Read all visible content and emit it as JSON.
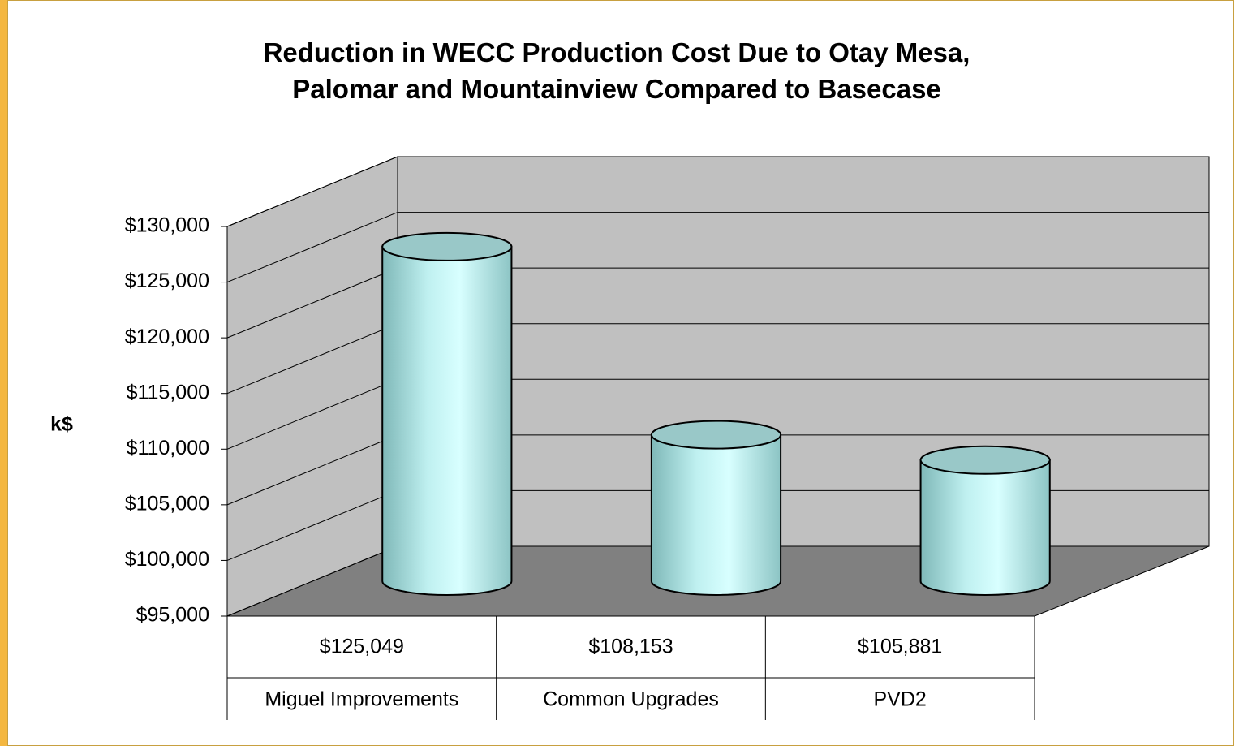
{
  "chart_data": {
    "type": "bar3d",
    "title": "Reduction in WECC Production Cost Due to Otay Mesa, Palomar and Mountainview Compared to Basecase",
    "ylabel": "k$",
    "categories": [
      "Miguel Improvements",
      "Common Upgrades",
      "PVD2"
    ],
    "values": [
      125049,
      108153,
      105881
    ],
    "value_labels": [
      "$125,049",
      "$108,153",
      "$105,881"
    ],
    "color": "#ccffff",
    "ylim": [
      95000,
      130000
    ],
    "yticks": [
      {
        "value": 95000,
        "label": "$95,000"
      },
      {
        "value": 100000,
        "label": "$100,000"
      },
      {
        "value": 105000,
        "label": "$105,000"
      },
      {
        "value": 110000,
        "label": "$110,000"
      },
      {
        "value": 115000,
        "label": "$115,000"
      },
      {
        "value": 120000,
        "label": "$120,000"
      },
      {
        "value": 125000,
        "label": "$125,000"
      },
      {
        "value": 130000,
        "label": "$130,000"
      }
    ],
    "grid": true
  }
}
